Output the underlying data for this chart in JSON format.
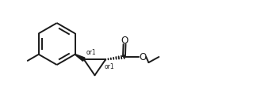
{
  "bg_color": "#ffffff",
  "line_color": "#1a1a1a",
  "lw": 1.4,
  "figsize": [
    3.24,
    1.24
  ],
  "dpi": 100,
  "or1_fontsize": 5.5,
  "o_fontsize": 8.5,
  "label_color": "#1a1a1a",
  "xlim": [
    0,
    10
  ],
  "ylim": [
    0,
    3.1
  ]
}
